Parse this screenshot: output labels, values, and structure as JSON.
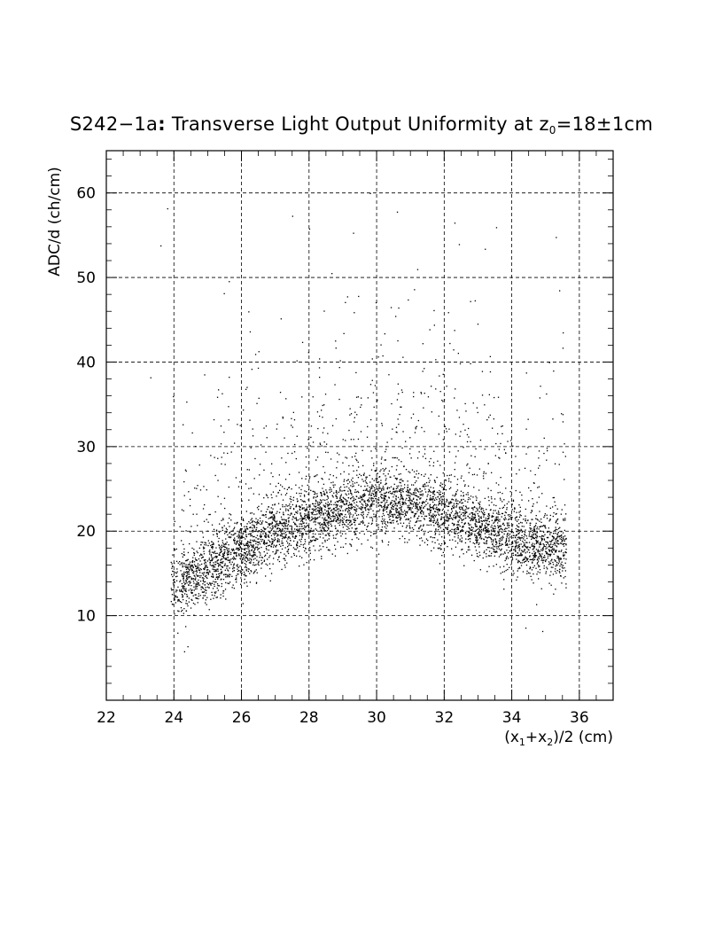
{
  "chart_data": {
    "type": "scatter",
    "title_prefix": "S242−1a",
    "title_colon": ":",
    "title_main": " Transverse Light Output Uniformity at z",
    "title_sub": "0",
    "title_suffix": "=18±1cm",
    "xlabel_parts": [
      "(x",
      "1",
      "+x",
      "2",
      ")/2 (cm)"
    ],
    "ylabel": "ADC/d (ch/cm)",
    "xlim": [
      22,
      37
    ],
    "ylim": [
      0,
      65
    ],
    "xticks": [
      22,
      24,
      26,
      28,
      30,
      32,
      34,
      36
    ],
    "yticks": [
      10,
      20,
      30,
      40,
      50,
      60
    ],
    "grid": true,
    "marker_color": "#000000",
    "trend": [
      {
        "x": 23.9,
        "y": 13.5
      },
      {
        "x": 25.0,
        "y": 15.5
      },
      {
        "x": 26.0,
        "y": 18.0
      },
      {
        "x": 27.0,
        "y": 20.0
      },
      {
        "x": 28.0,
        "y": 21.5
      },
      {
        "x": 29.0,
        "y": 22.5
      },
      {
        "x": 30.0,
        "y": 23.8
      },
      {
        "x": 31.0,
        "y": 23.5
      },
      {
        "x": 32.0,
        "y": 22.3
      },
      {
        "x": 33.0,
        "y": 20.7
      },
      {
        "x": 34.0,
        "y": 19.0
      },
      {
        "x": 35.5,
        "y": 18.0
      }
    ],
    "x_range": [
      23.9,
      35.6
    ],
    "n_points": 5200,
    "core_spread": 2.0,
    "outlier_fraction": 0.11,
    "outlier_ymax": 60,
    "sample_points": [
      {
        "x": 23.6,
        "y": 53.8
      },
      {
        "x": 23.8,
        "y": 58.2
      },
      {
        "x": 23.3,
        "y": 38.2
      },
      {
        "x": 24.3,
        "y": 5.8
      },
      {
        "x": 24.4,
        "y": 6.4
      },
      {
        "x": 24.1,
        "y": 8.0
      },
      {
        "x": 26.2,
        "y": 46.0
      },
      {
        "x": 26.5,
        "y": 41.3
      },
      {
        "x": 27.5,
        "y": 57.3
      },
      {
        "x": 28.0,
        "y": 55.8
      },
      {
        "x": 29.3,
        "y": 55.3
      },
      {
        "x": 29.8,
        "y": 60.0
      },
      {
        "x": 30.6,
        "y": 57.8
      },
      {
        "x": 31.2,
        "y": 51.0
      },
      {
        "x": 32.3,
        "y": 56.5
      },
      {
        "x": 32.9,
        "y": 47.3
      },
      {
        "x": 33.2,
        "y": 53.4
      },
      {
        "x": 34.4,
        "y": 8.6
      },
      {
        "x": 34.9,
        "y": 8.2
      },
      {
        "x": 35.3,
        "y": 54.8
      },
      {
        "x": 35.4,
        "y": 48.5
      },
      {
        "x": 35.5,
        "y": 41.7
      },
      {
        "x": 35.1,
        "y": 40.0
      },
      {
        "x": 25.6,
        "y": 34.8
      }
    ]
  }
}
